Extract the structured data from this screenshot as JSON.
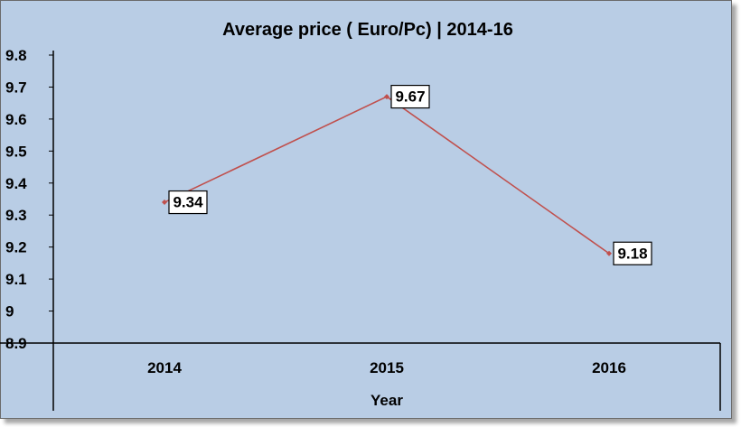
{
  "chart_data": {
    "type": "line",
    "title": "Average price ( Euro/Pc)  | 2014-16",
    "xlabel": "Year",
    "ylabel": "",
    "categories": [
      "2014",
      "2015",
      "2016"
    ],
    "series": [
      {
        "values": [
          9.34,
          9.67,
          9.18
        ],
        "color": "#c0504d"
      }
    ],
    "data_labels": [
      "9.34",
      "9.67",
      "9.18"
    ],
    "y_ticks": [
      "9.8",
      "9.7",
      "9.6",
      "9.5",
      "9.4",
      "9.3",
      "9.2",
      "9.1",
      "9",
      "8.9"
    ],
    "ylim": [
      8.9,
      9.8
    ],
    "grid": false,
    "legend": "none",
    "colors": {
      "background": "#b9cde5",
      "line": "#c0504d",
      "axis": "#000000"
    }
  }
}
